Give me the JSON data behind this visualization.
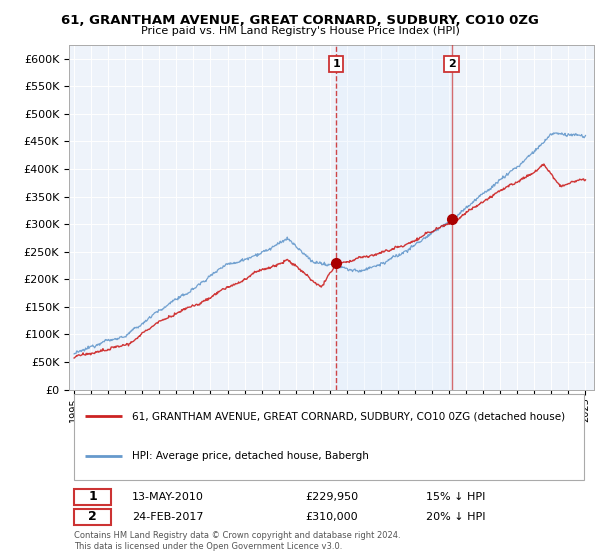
{
  "title": "61, GRANTHAM AVENUE, GREAT CORNARD, SUDBURY, CO10 0ZG",
  "subtitle": "Price paid vs. HM Land Registry's House Price Index (HPI)",
  "ylim": [
    0,
    625000
  ],
  "yticks": [
    0,
    50000,
    100000,
    150000,
    200000,
    250000,
    300000,
    350000,
    400000,
    450000,
    500000,
    550000,
    600000
  ],
  "xlim_start": 1994.7,
  "xlim_end": 2025.5,
  "sale1_date": 2010.37,
  "sale1_price": 229950,
  "sale1_label": "1",
  "sale1_info": "13-MAY-2010",
  "sale1_pct": "15% ↓ HPI",
  "sale2_date": 2017.15,
  "sale2_price": 310000,
  "sale2_label": "2",
  "sale2_info": "24-FEB-2017",
  "sale2_pct": "20% ↓ HPI",
  "hpi_color": "#6699cc",
  "price_color": "#cc2222",
  "marker_color": "#aa0000",
  "dashed_color": "#cc3333",
  "shade_color": "#ddeeff",
  "legend_label1": "61, GRANTHAM AVENUE, GREAT CORNARD, SUDBURY, CO10 0ZG (detached house)",
  "legend_label2": "HPI: Average price, detached house, Babergh",
  "footnote": "Contains HM Land Registry data © Crown copyright and database right 2024.\nThis data is licensed under the Open Government Licence v3.0.",
  "background_color": "#eef3fa"
}
